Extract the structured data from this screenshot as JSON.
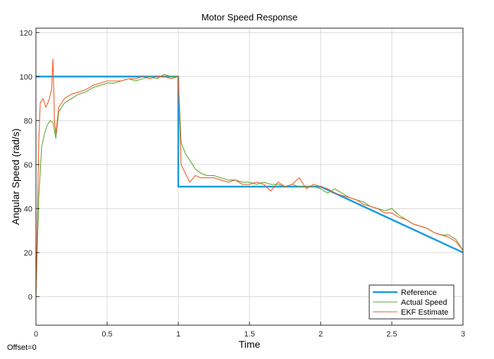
{
  "offset_label": "Offset=0",
  "chart_data": {
    "type": "line",
    "title": "Motor Speed Response",
    "xlabel": "Time",
    "ylabel": "Angular Speed (rad/s)",
    "xlim": [
      0,
      3
    ],
    "ylim": [
      -13,
      122
    ],
    "xticks": [
      0,
      0.5,
      1,
      1.5,
      2,
      2.5,
      3
    ],
    "xtick_labels": [
      "0",
      "0.5",
      "1",
      "1.5",
      "2",
      "2.5",
      "3"
    ],
    "yticks": [
      0,
      20,
      40,
      60,
      80,
      100,
      120
    ],
    "ytick_labels": [
      "0",
      "20",
      "40",
      "60",
      "80",
      "100",
      "120"
    ],
    "grid": true,
    "legend_position": "bottom-right",
    "series": [
      {
        "name": "Reference",
        "color": "#1a9bde",
        "x": [
          0,
          1,
          1,
          2,
          3
        ],
        "y": [
          100,
          100,
          50,
          50,
          20
        ]
      },
      {
        "name": "Actual Speed",
        "color": "#5fa832",
        "x": [
          0,
          0.02,
          0.04,
          0.06,
          0.08,
          0.1,
          0.12,
          0.14,
          0.16,
          0.2,
          0.25,
          0.3,
          0.35,
          0.4,
          0.45,
          0.5,
          0.55,
          0.6,
          0.65,
          0.7,
          0.75,
          0.8,
          0.85,
          0.9,
          0.95,
          1.0,
          1.02,
          1.05,
          1.08,
          1.12,
          1.16,
          1.2,
          1.25,
          1.3,
          1.35,
          1.4,
          1.45,
          1.5,
          1.55,
          1.6,
          1.65,
          1.7,
          1.75,
          1.8,
          1.85,
          1.9,
          1.95,
          2.0,
          2.05,
          2.1,
          2.15,
          2.2,
          2.25,
          2.3,
          2.35,
          2.4,
          2.45,
          2.5,
          2.55,
          2.6,
          2.65,
          2.7,
          2.75,
          2.8,
          2.85,
          2.9,
          2.95,
          3.0
        ],
        "y": [
          0,
          45,
          68,
          74,
          78,
          80,
          79,
          72,
          84,
          88,
          90,
          92,
          93,
          95,
          96,
          97,
          97,
          98,
          99,
          98,
          99,
          100,
          99,
          101,
          100,
          100,
          70,
          65,
          62,
          58,
          56,
          55,
          55,
          54,
          53,
          53,
          52,
          52,
          51,
          52,
          51,
          51,
          50,
          51,
          50,
          50,
          50,
          49,
          47,
          49,
          47,
          45,
          44,
          43,
          41,
          40,
          39,
          40,
          37,
          35,
          33,
          32,
          31,
          29,
          28,
          28,
          26,
          21
        ]
      },
      {
        "name": "EKF Estimate",
        "color": "#f05a24",
        "x": [
          0,
          0.02,
          0.03,
          0.05,
          0.07,
          0.09,
          0.11,
          0.12,
          0.13,
          0.14,
          0.16,
          0.2,
          0.25,
          0.3,
          0.35,
          0.4,
          0.45,
          0.5,
          0.55,
          0.6,
          0.65,
          0.7,
          0.75,
          0.8,
          0.85,
          0.9,
          0.95,
          1.0,
          1.02,
          1.05,
          1.08,
          1.12,
          1.16,
          1.2,
          1.25,
          1.3,
          1.35,
          1.4,
          1.45,
          1.5,
          1.55,
          1.6,
          1.65,
          1.7,
          1.75,
          1.8,
          1.85,
          1.9,
          1.95,
          2.0,
          2.05,
          2.1,
          2.15,
          2.2,
          2.25,
          2.3,
          2.35,
          2.4,
          2.45,
          2.5,
          2.55,
          2.6,
          2.65,
          2.7,
          2.75,
          2.8,
          2.85,
          2.9,
          2.95,
          3.0
        ],
        "y": [
          0,
          70,
          88,
          90,
          86,
          89,
          94,
          108,
          80,
          74,
          86,
          90,
          92,
          93,
          94,
          96,
          97,
          98,
          98,
          98,
          99,
          99,
          100,
          99,
          100,
          100,
          99,
          100,
          60,
          56,
          52,
          55,
          54,
          54,
          54,
          53,
          52,
          53,
          51,
          51,
          52,
          51,
          48,
          52,
          50,
          51,
          54,
          49,
          51,
          50,
          49,
          47,
          46,
          45,
          44,
          42,
          41,
          40,
          38,
          38,
          36,
          35,
          33,
          32,
          31,
          29,
          28,
          27,
          25,
          21
        ]
      }
    ]
  }
}
